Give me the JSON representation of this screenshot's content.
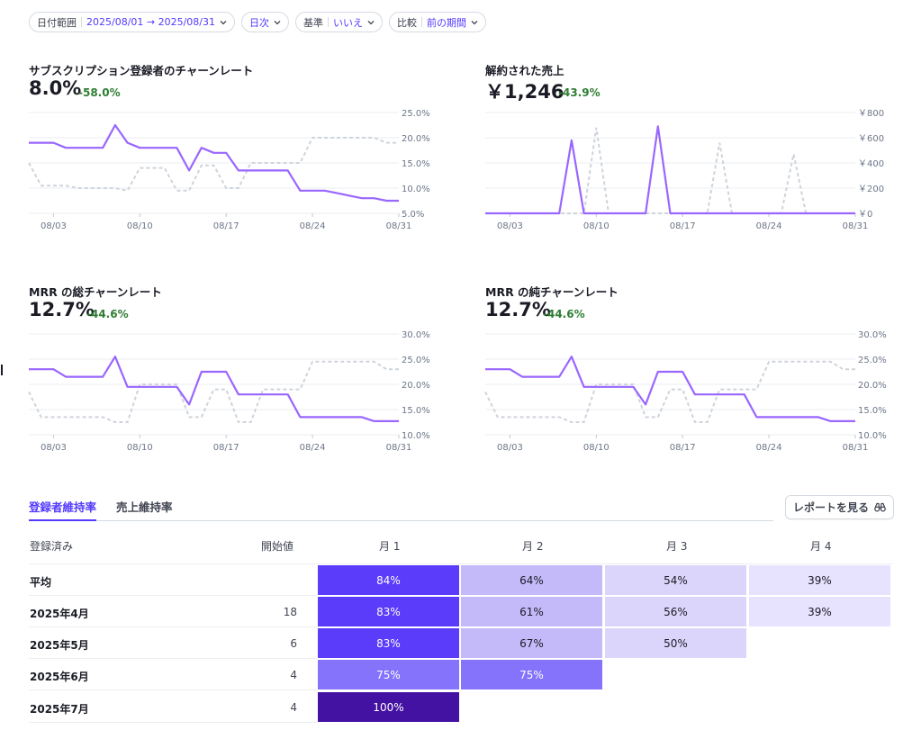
{
  "filters": [
    {
      "label": "日付範囲",
      "value": "2025/08/01 → 2025/08/31"
    },
    {
      "label": "日次",
      "value": ""
    },
    {
      "label": "基準",
      "value": "いいえ"
    },
    {
      "label": "比較",
      "value": "前の期間"
    }
  ],
  "charts": [
    {
      "title": "サブスクリプション登録者のチャーンレート",
      "value": "8.0%",
      "delta": "-58.0%",
      "y_ticks": [
        "25.0%",
        "20.0%",
        "15.0%",
        "10.0%",
        "5.0%"
      ],
      "y_range": [
        5,
        25
      ],
      "x_ticks": [
        "08/03",
        "08/10",
        "08/17",
        "08/24",
        "08/31"
      ],
      "x_tick_days": [
        3,
        10,
        17,
        24,
        31
      ],
      "current": [
        19,
        19,
        19,
        18,
        18,
        18,
        18,
        22.5,
        19,
        18,
        18,
        18,
        18,
        13.5,
        18,
        17,
        17,
        13.5,
        13.5,
        13.5,
        13.5,
        13.5,
        9.5,
        9.5,
        9.5,
        9,
        8.5,
        8,
        8,
        7.5,
        7.5
      ],
      "previous": [
        15,
        10.5,
        10.5,
        10.5,
        10,
        10,
        10,
        10,
        9.5,
        14,
        14,
        14,
        9.5,
        9.5,
        14.5,
        14.5,
        10,
        10,
        15,
        15,
        15,
        15,
        15,
        20,
        20,
        20,
        20,
        20,
        20,
        19,
        19
      ]
    },
    {
      "title": "解約された売上",
      "value": "￥1,246",
      "delta": "-43.9%",
      "y_ticks": [
        "￥800",
        "￥600",
        "￥400",
        "￥200",
        "￥0"
      ],
      "y_range": [
        0,
        800
      ],
      "x_ticks": [
        "08/03",
        "08/10",
        "08/17",
        "08/24",
        "08/31"
      ],
      "x_tick_days": [
        3,
        10,
        17,
        24,
        31
      ],
      "current": [
        0,
        0,
        0,
        0,
        0,
        0,
        0,
        580,
        0,
        0,
        0,
        0,
        0,
        0,
        690,
        0,
        0,
        0,
        0,
        0,
        0,
        0,
        0,
        0,
        0,
        0,
        0,
        0,
        0,
        0,
        0
      ],
      "previous": [
        0,
        0,
        0,
        0,
        0,
        0,
        0,
        0,
        0,
        680,
        0,
        0,
        0,
        0,
        0,
        0,
        0,
        0,
        0,
        560,
        0,
        0,
        0,
        0,
        0,
        470,
        0,
        0,
        0,
        0,
        0
      ]
    },
    {
      "title": "MRR の総チャーンレート",
      "value": "12.7%",
      "delta": "-44.6%",
      "y_ticks": [
        "30.0%",
        "25.0%",
        "20.0%",
        "15.0%",
        "10.0%"
      ],
      "y_range": [
        10,
        30
      ],
      "x_ticks": [
        "08/03",
        "08/10",
        "08/17",
        "08/24",
        "08/31"
      ],
      "x_tick_days": [
        3,
        10,
        17,
        24,
        31
      ],
      "current": [
        23,
        23,
        23,
        21.5,
        21.5,
        21.5,
        21.5,
        25.5,
        19.5,
        19.5,
        19.5,
        19.5,
        19.5,
        16,
        22.5,
        22.5,
        22.5,
        18,
        18,
        18,
        18,
        18,
        13.5,
        13.5,
        13.5,
        13.5,
        13.5,
        13.5,
        12.7,
        12.7,
        12.7
      ],
      "previous": [
        18.5,
        13.5,
        13.5,
        13.5,
        13.5,
        13.5,
        13.5,
        12.5,
        12.5,
        20,
        20,
        20,
        20,
        13.5,
        13.5,
        19,
        19,
        12.5,
        12.5,
        19,
        19,
        19,
        19,
        24.5,
        24.5,
        24.5,
        24.5,
        24.5,
        24.5,
        23,
        23
      ]
    },
    {
      "title": "MRR の純チャーンレート",
      "value": "12.7%",
      "delta": "-44.6%",
      "y_ticks": [
        "30.0%",
        "25.0%",
        "20.0%",
        "15.0%",
        "10.0%"
      ],
      "y_range": [
        10,
        30
      ],
      "x_ticks": [
        "08/03",
        "08/10",
        "08/17",
        "08/24",
        "08/31"
      ],
      "x_tick_days": [
        3,
        10,
        17,
        24,
        31
      ],
      "current": [
        23,
        23,
        23,
        21.5,
        21.5,
        21.5,
        21.5,
        25.5,
        19.5,
        19.5,
        19.5,
        19.5,
        19.5,
        16,
        22.5,
        22.5,
        22.5,
        18,
        18,
        18,
        18,
        18,
        13.5,
        13.5,
        13.5,
        13.5,
        13.5,
        13.5,
        12.7,
        12.7,
        12.7
      ],
      "previous": [
        18.5,
        13.5,
        13.5,
        13.5,
        13.5,
        13.5,
        13.5,
        12.5,
        12.5,
        20,
        20,
        20,
        20,
        13.5,
        13.5,
        19,
        19,
        12.5,
        12.5,
        19,
        19,
        19,
        19,
        24.5,
        24.5,
        24.5,
        24.5,
        24.5,
        24.5,
        23,
        23
      ]
    }
  ],
  "tabs": [
    {
      "label": "登録者維持率",
      "active": true
    },
    {
      "label": "売上維持率",
      "active": false
    }
  ],
  "report_button": "レポートを見る",
  "cohort": {
    "headers": [
      "登録済み",
      "開始値",
      "月 1",
      "月 2",
      "月 3",
      "月 4"
    ],
    "rows": [
      {
        "label": "平均",
        "start": "",
        "cells": [
          "84%",
          "64%",
          "54%",
          "39%"
        ]
      },
      {
        "label": "2025年4月",
        "start": "18",
        "cells": [
          "83%",
          "61%",
          "56%",
          "39%"
        ]
      },
      {
        "label": "2025年5月",
        "start": "6",
        "cells": [
          "83%",
          "67%",
          "50%"
        ]
      },
      {
        "label": "2025年6月",
        "start": "4",
        "cells": [
          "75%",
          "75%"
        ]
      },
      {
        "label": "2025年7月",
        "start": "4",
        "cells": [
          "100%"
        ]
      }
    ],
    "cell_levels": [
      [
        84,
        64,
        54,
        39
      ],
      [
        83,
        61,
        56,
        39
      ],
      [
        83,
        67,
        50
      ],
      [
        75,
        75
      ],
      [
        100
      ]
    ]
  },
  "colors": {
    "accent": "#533afd",
    "current_line": "#9966ff",
    "previous_line": "#cfd4dc",
    "delta_positive": "#2e7d32"
  }
}
